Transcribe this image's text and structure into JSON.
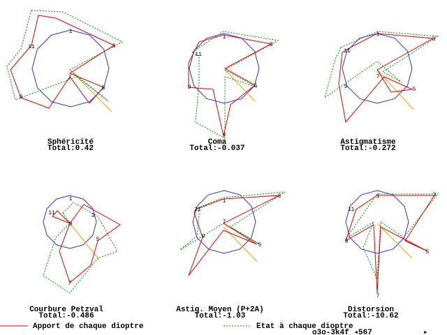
{
  "panels": [
    {
      "title": "Sphéricité",
      "total": "Total:0.42",
      "labels": [
        "1",
        "3",
        "5",
        "7",
        "9",
        "11"
      ]
    },
    {
      "title": "Coma",
      "total": "Total:-0.037",
      "labels": [
        "1",
        "3",
        "5",
        "7",
        "9",
        "11"
      ]
    },
    {
      "title": "Astigmatisme",
      "total": "Total:-0.272",
      "labels": [
        "1",
        "3",
        "5",
        "7",
        "9",
        "11"
      ]
    },
    {
      "title": "Courbure Petzval",
      "total": "Total:-0.486",
      "labels": [
        "1",
        "3",
        "5",
        "7",
        "9",
        "11"
      ]
    },
    {
      "title": "Astig. Moyen (P+2A)",
      "total": "Total:-1.03",
      "labels": [
        "1",
        "3",
        "5",
        "7",
        "9",
        "11"
      ]
    },
    {
      "title": "Distorsion",
      "total": "Total:-10.62",
      "labels": [
        "1",
        "3",
        "5",
        "7",
        "9",
        "11"
      ]
    }
  ],
  "legend": {
    "red": "Apport de chaque dioptre",
    "green": "Etat à chaque dioptre"
  },
  "status": "o3o-3k4f ◂567",
  "arrow": "▸"
}
